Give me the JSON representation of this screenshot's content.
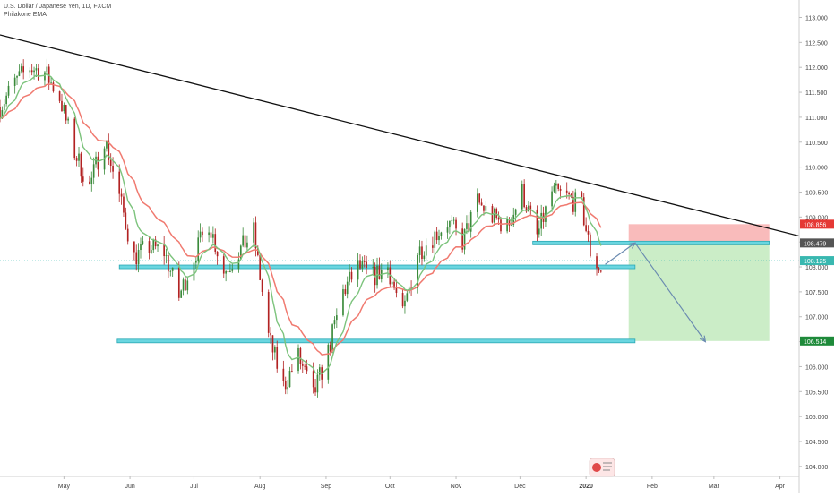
{
  "legend": {
    "symbol_line": "U.S. Dollar / Japanese Yen, 1D, FXCM",
    "indicator": "Philakone EMA"
  },
  "colors": {
    "bull_candle": "#3a8a3a",
    "bear_candle": "#b22222",
    "ema_fast": "#7cc37c",
    "ema_slow": "#f07a70",
    "trendline": "#111111",
    "support_zone": "#6ad6e0",
    "risk_box": "#f8b4b4",
    "reward_box": "#c8ecc4",
    "arrow": "#6a8ab0",
    "badge_red": "#e53935",
    "badge_dark": "#555555",
    "badge_teal": "#39b8b0",
    "badge_green": "#1e8a3a",
    "axis_text": "#444444"
  },
  "chart_data": {
    "type": "candlestick",
    "title": "U.S. Dollar / Japanese Yen, 1D, FXCM",
    "indicators": [
      "Philakone EMA"
    ],
    "ylim": [
      103.8,
      113.35
    ],
    "y_ticks": [
      "113.000",
      "112.500",
      "112.000",
      "111.500",
      "111.000",
      "110.500",
      "110.000",
      "109.500",
      "109.000",
      "108.500",
      "108.000",
      "107.500",
      "107.000",
      "106.500",
      "106.000",
      "105.500",
      "105.000",
      "104.500",
      "104.000"
    ],
    "y_tick_values": [
      113.0,
      112.5,
      112.0,
      111.5,
      111.0,
      110.5,
      110.0,
      109.5,
      109.0,
      108.5,
      108.0,
      107.5,
      107.0,
      106.5,
      106.0,
      105.5,
      105.0,
      104.5,
      104.0
    ],
    "x_ticks": [
      "May",
      "Jun",
      "Jul",
      "Aug",
      "Sep",
      "Oct",
      "Nov",
      "Dec",
      "2020",
      "Feb",
      "Mar",
      "Apr"
    ],
    "x_tick_dates": [
      "2019-05-01",
      "2019-06-01",
      "2019-07-01",
      "2019-08-01",
      "2019-09-01",
      "2019-10-01",
      "2019-11-01",
      "2019-12-01",
      "2020-01-01",
      "2020-02-01",
      "2020-03-01",
      "2020-04-01"
    ],
    "x_range": [
      "2019-04-01",
      "2020-04-10"
    ],
    "path_points": [
      {
        "date": "2019-04-01",
        "price": 111.2
      },
      {
        "date": "2019-04-08",
        "price": 111.7
      },
      {
        "date": "2019-04-15",
        "price": 112.0
      },
      {
        "date": "2019-04-22",
        "price": 111.9
      },
      {
        "date": "2019-04-29",
        "price": 111.4
      },
      {
        "date": "2019-05-06",
        "price": 110.3
      },
      {
        "date": "2019-05-13",
        "price": 109.6
      },
      {
        "date": "2019-05-20",
        "price": 110.6
      },
      {
        "date": "2019-05-27",
        "price": 109.4
      },
      {
        "date": "2019-06-03",
        "price": 108.2
      },
      {
        "date": "2019-06-10",
        "price": 108.4
      },
      {
        "date": "2019-06-17",
        "price": 108.3
      },
      {
        "date": "2019-06-24",
        "price": 107.4
      },
      {
        "date": "2019-07-01",
        "price": 108.2
      },
      {
        "date": "2019-07-08",
        "price": 108.9
      },
      {
        "date": "2019-07-15",
        "price": 107.9
      },
      {
        "date": "2019-07-22",
        "price": 108.3
      },
      {
        "date": "2019-07-29",
        "price": 108.7
      },
      {
        "date": "2019-08-05",
        "price": 106.6
      },
      {
        "date": "2019-08-12",
        "price": 105.6
      },
      {
        "date": "2019-08-19",
        "price": 106.2
      },
      {
        "date": "2019-08-26",
        "price": 105.4
      },
      {
        "date": "2019-09-02",
        "price": 106.3
      },
      {
        "date": "2019-09-09",
        "price": 107.5
      },
      {
        "date": "2019-09-16",
        "price": 108.0
      },
      {
        "date": "2019-09-23",
        "price": 107.8
      },
      {
        "date": "2019-09-30",
        "price": 108.0
      },
      {
        "date": "2019-10-07",
        "price": 107.0
      },
      {
        "date": "2019-10-14",
        "price": 108.3
      },
      {
        "date": "2019-10-21",
        "price": 108.6
      },
      {
        "date": "2019-10-28",
        "price": 108.9
      },
      {
        "date": "2019-11-04",
        "price": 108.5
      },
      {
        "date": "2019-11-11",
        "price": 109.3
      },
      {
        "date": "2019-11-18",
        "price": 109.0
      },
      {
        "date": "2019-11-25",
        "price": 108.8
      },
      {
        "date": "2019-12-02",
        "price": 109.5
      },
      {
        "date": "2019-12-09",
        "price": 108.6
      },
      {
        "date": "2019-12-16",
        "price": 109.5
      },
      {
        "date": "2019-12-23",
        "price": 109.4
      },
      {
        "date": "2019-12-30",
        "price": 109.2
      },
      {
        "date": "2020-01-03",
        "price": 108.3
      },
      {
        "date": "2020-01-08",
        "price": 107.9
      }
    ],
    "trendline": {
      "start": {
        "date": "2019-04-01",
        "price": 112.65
      },
      "end": {
        "date": "2020-04-10",
        "price": 108.62
      }
    },
    "support_zones": [
      {
        "date_from": "2019-05-27",
        "date_to": "2020-01-24",
        "price": 108.0
      },
      {
        "date_from": "2019-05-26",
        "date_to": "2020-01-24",
        "price": 106.514
      }
    ],
    "resistance_zone": {
      "date_from": "2019-12-07",
      "date_to": "2020-03-27",
      "price": 108.479
    },
    "short_position": {
      "date_from": "2020-01-21",
      "date_to": "2020-03-27",
      "entry": 108.479,
      "stop": 108.856,
      "target": 106.514
    },
    "projection_path": [
      {
        "date": "2020-01-10",
        "price": 108.05
      },
      {
        "date": "2020-01-24",
        "price": 108.48
      },
      {
        "date": "2020-02-26",
        "price": 106.5
      }
    ],
    "current_price": 108.125,
    "price_labels": [
      {
        "text": "108.856",
        "price": 108.856,
        "color_key": "badge_red"
      },
      {
        "text": "108.479",
        "price": 108.479,
        "color_key": "badge_dark"
      },
      {
        "text": "108.125",
        "price": 108.125,
        "color_key": "badge_teal"
      },
      {
        "text": "106.514",
        "price": 106.514,
        "color_key": "badge_green"
      }
    ]
  }
}
